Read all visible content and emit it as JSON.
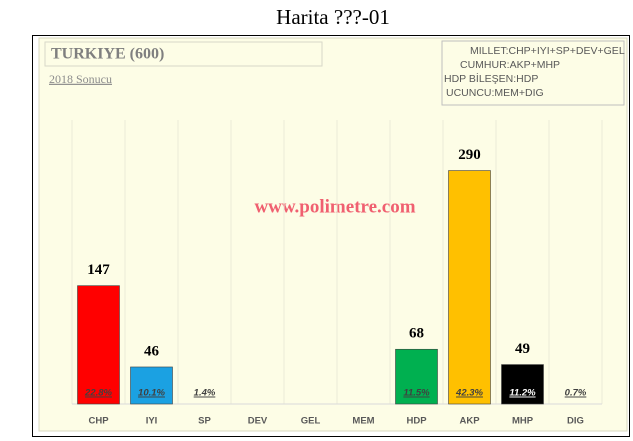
{
  "chart_data": {
    "type": "bar",
    "title": "Harita ???-01",
    "subtitle": "TURKIYE (600)",
    "note": "2018 Sonucu",
    "watermark": "www.polimetre.com",
    "legend_lines": [
      "MILLET:CHP+IYI+SP+DEV+GEL",
      "CUMHUR:AKP+MHP",
      "HDP BİLEŞEN:HDP",
      "UCUNCU:MEM+DIG"
    ],
    "categories": [
      "CHP",
      "IYI",
      "SP",
      "DEV",
      "GEL",
      "MEM",
      "HDP",
      "AKP",
      "MHP",
      "DIG"
    ],
    "values": [
      147,
      46,
      null,
      null,
      null,
      null,
      68,
      290,
      49,
      null
    ],
    "colors": [
      "#ff0000",
      "#1ba1e2",
      null,
      null,
      null,
      null,
      "#00b050",
      "#ffc000",
      "#000000",
      null
    ],
    "shares": [
      22.8,
      10.1,
      1.4,
      null,
      null,
      null,
      11.5,
      42.3,
      11.2,
      0.7
    ],
    "share_labels": [
      "22.8%",
      "10.1%",
      "1.4%",
      null,
      null,
      null,
      "11.5%",
      "42.3%",
      "11.2%",
      "0.7%"
    ]
  }
}
